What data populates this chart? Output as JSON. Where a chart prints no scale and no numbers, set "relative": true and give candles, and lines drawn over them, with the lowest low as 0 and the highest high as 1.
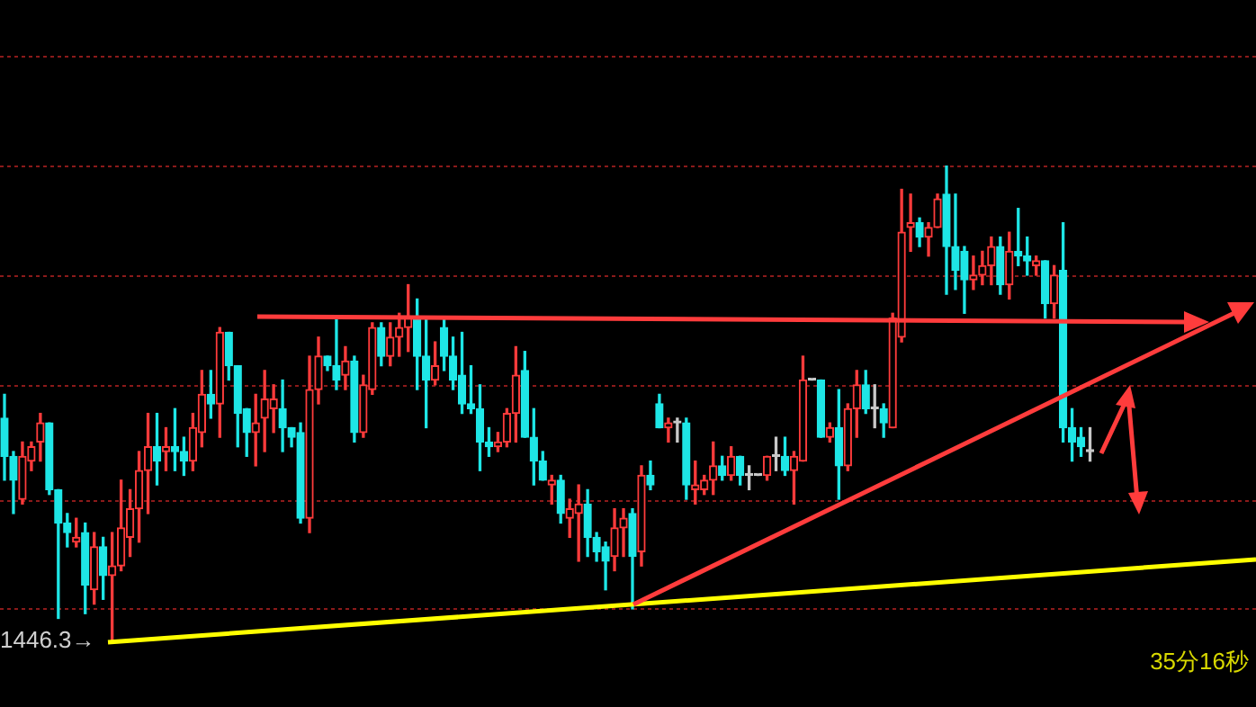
{
  "chart_data": {
    "type": "candlestick",
    "relative": true,
    "annotations": [
      "1446.3→",
      "35分16秒"
    ],
    "ref_lines": [
      {
        "axis": "y",
        "value": 1.23,
        "color": "#8b1a1a",
        "line_style": "dotted"
      },
      {
        "axis": "y",
        "value": 1.0,
        "color": "#8b1a1a",
        "line_style": "dotted"
      },
      {
        "axis": "y",
        "value": 0.77,
        "color": "#8b1a1a",
        "line_style": "dotted"
      },
      {
        "axis": "y",
        "value": 0.54,
        "color": "#8b1a1a",
        "line_style": "dotted"
      },
      {
        "axis": "y",
        "value": 0.3,
        "color": "#8b1a1a",
        "line_style": "dotted"
      },
      {
        "axis": "y",
        "value": 0.07,
        "color": "#8b1a1a",
        "line_style": "dotted"
      }
    ],
    "categories": [
      null,
      null,
      null,
      null,
      null,
      null,
      null,
      null,
      null,
      null,
      null,
      null,
      null,
      null,
      null,
      null,
      null,
      null,
      null,
      null,
      null,
      null,
      null,
      null,
      null,
      null,
      null,
      null,
      null,
      null,
      null,
      null,
      null,
      null,
      null,
      null,
      null,
      null,
      null,
      null,
      null,
      null,
      null,
      null,
      null,
      null,
      null,
      null,
      null,
      null,
      null,
      null,
      null,
      null,
      null,
      null,
      null,
      null,
      null,
      null,
      null,
      null,
      null,
      null,
      null,
      null,
      null,
      null,
      null,
      null,
      null,
      null,
      null,
      null,
      null,
      null,
      null,
      null,
      null,
      null,
      null,
      null,
      null,
      null,
      null,
      null,
      null,
      null,
      null,
      null,
      null,
      null,
      null,
      null,
      null,
      null,
      null,
      null,
      null,
      null,
      null,
      null,
      null,
      null,
      null,
      null,
      null,
      null,
      null,
      null,
      null,
      null,
      null,
      null,
      null,
      null,
      null,
      null,
      null,
      null,
      null,
      null,
      null,
      null,
      null,
      null,
      null,
      null,
      null,
      null,
      null,
      null,
      null,
      null,
      null,
      null,
      null,
      null,
      null,
      null
    ],
    "ohlc": [
      [
        0.47,
        0.52,
        0.34,
        0.39
      ],
      [
        0.39,
        0.4,
        0.27,
        0.34
      ],
      [
        0.3,
        0.42,
        0.29,
        0.39
      ],
      [
        0.38,
        0.42,
        0.36,
        0.41
      ],
      [
        0.42,
        0.48,
        0.38,
        0.46
      ],
      [
        0.46,
        0.46,
        0.31,
        0.32
      ],
      [
        0.32,
        0.32,
        0.05,
        0.25
      ],
      [
        0.25,
        0.27,
        0.2,
        0.23
      ],
      [
        0.21,
        0.26,
        0.2,
        0.22
      ],
      [
        0.23,
        0.25,
        0.06,
        0.12
      ],
      [
        0.11,
        0.23,
        0.08,
        0.2
      ],
      [
        0.2,
        0.22,
        0.09,
        0.14
      ],
      [
        0.14,
        0.23,
        0,
        0.16
      ],
      [
        0.16,
        0.34,
        0.15,
        0.24
      ],
      [
        0.22,
        0.32,
        0.18,
        0.28
      ],
      [
        0.28,
        0.4,
        0.21,
        0.36
      ],
      [
        0.36,
        0.48,
        0.27,
        0.41
      ],
      [
        0.41,
        0.48,
        0.33,
        0.38
      ],
      [
        0.4,
        0.45,
        0.36,
        0.41
      ],
      [
        0.41,
        0.49,
        0.36,
        0.4
      ],
      [
        0.4,
        0.43,
        0.35,
        0.38
      ],
      [
        0.38,
        0.48,
        0.36,
        0.45
      ],
      [
        0.44,
        0.57,
        0.41,
        0.52
      ],
      [
        0.52,
        0.57,
        0.47,
        0.5
      ],
      [
        0.5,
        0.66,
        0.43,
        0.65
      ],
      [
        0.65,
        0.65,
        0.55,
        0.58
      ],
      [
        0.58,
        0.58,
        0.41,
        0.48
      ],
      [
        0.49,
        0.49,
        0.39,
        0.44
      ],
      [
        0.44,
        0.52,
        0.37,
        0.46
      ],
      [
        0.47,
        0.57,
        0.4,
        0.51
      ],
      [
        0.49,
        0.54,
        0.44,
        0.51
      ],
      [
        0.49,
        0.55,
        0.4,
        0.45
      ],
      [
        0.45,
        0.45,
        0.41,
        0.43
      ],
      [
        0.44,
        0.46,
        0.25,
        0.26
      ],
      [
        0.26,
        0.6,
        0.23,
        0.53
      ],
      [
        0.53,
        0.64,
        0.5,
        0.6
      ],
      [
        0.6,
        0.6,
        0.57,
        0.58
      ],
      [
        0.58,
        0.68,
        0.53,
        0.55
      ],
      [
        0.56,
        0.62,
        0.53,
        0.59
      ],
      [
        0.59,
        0.6,
        0.42,
        0.44
      ],
      [
        0.44,
        0.56,
        0.43,
        0.54
      ],
      [
        0.53,
        0.67,
        0.52,
        0.66
      ],
      [
        0.66,
        0.67,
        0.58,
        0.6
      ],
      [
        0.6,
        0.67,
        0.58,
        0.64
      ],
      [
        0.64,
        0.69,
        0.6,
        0.66
      ],
      [
        0.66,
        0.75,
        0.61,
        0.68
      ],
      [
        0.68,
        0.72,
        0.53,
        0.6
      ],
      [
        0.6,
        0.68,
        0.45,
        0.55
      ],
      [
        0.55,
        0.63,
        0.54,
        0.58
      ],
      [
        0.66,
        0.68,
        0.57,
        0.6
      ],
      [
        0.6,
        0.64,
        0.53,
        0.55
      ],
      [
        0.56,
        0.65,
        0.48,
        0.5
      ],
      [
        0.5,
        0.58,
        0.48,
        0.49
      ],
      [
        0.49,
        0.54,
        0.36,
        0.42
      ],
      [
        0.42,
        0.45,
        0.39,
        0.41
      ],
      [
        0.41,
        0.44,
        0.4,
        0.42
      ],
      [
        0.42,
        0.49,
        0.41,
        0.48
      ],
      [
        0.48,
        0.62,
        0.42,
        0.56
      ],
      [
        0.57,
        0.61,
        0.43,
        0.43
      ],
      [
        0.43,
        0.49,
        0.33,
        0.38
      ],
      [
        0.38,
        0.4,
        0.34,
        0.34
      ],
      [
        0.33,
        0.35,
        0.29,
        0.34
      ],
      [
        0.34,
        0.35,
        0.25,
        0.27
      ],
      [
        0.26,
        0.3,
        0.22,
        0.28
      ],
      [
        0.27,
        0.33,
        0.17,
        0.29
      ],
      [
        0.29,
        0.32,
        0.18,
        0.22
      ],
      [
        0.22,
        0.23,
        0.17,
        0.19
      ],
      [
        0.2,
        0.21,
        0.11,
        0.17
      ],
      [
        0.18,
        0.28,
        0.15,
        0.24
      ],
      [
        0.24,
        0.28,
        0.18,
        0.26
      ],
      [
        0.27,
        0.28,
        0.07,
        0.18
      ],
      [
        0.19,
        0.37,
        0.16,
        0.35
      ],
      [
        0.35,
        0.38,
        0.32,
        0.33
      ],
      [
        0.5,
        0.52,
        0.45,
        0.45
      ],
      [
        0.45,
        0.47,
        0.42,
        0.46
      ],
      [
        0.46,
        0.47,
        0.42,
        0.46
      ],
      [
        0.46,
        0.47,
        0.3,
        0.33
      ],
      [
        0.32,
        0.38,
        0.29,
        0.33
      ],
      [
        0.32,
        0.35,
        0.31,
        0.34
      ],
      [
        0.34,
        0.42,
        0.31,
        0.37
      ],
      [
        0.37,
        0.39,
        0.34,
        0.35
      ],
      [
        0.35,
        0.41,
        0.34,
        0.39
      ],
      [
        0.39,
        0.39,
        0.33,
        0.35
      ],
      [
        0.35,
        0.37,
        0.32,
        0.35
      ],
      [
        0.35,
        0.35,
        0.35,
        0.35
      ],
      [
        0.35,
        0.39,
        0.34,
        0.39
      ],
      [
        0.39,
        0.43,
        0.36,
        0.39
      ],
      [
        0.39,
        0.43,
        0.35,
        0.36
      ],
      [
        0.36,
        0.4,
        0.29,
        0.39
      ],
      [
        0.38,
        0.6,
        0.38,
        0.55
      ],
      [
        0.55,
        0.55,
        0.55,
        0.55
      ],
      [
        0.55,
        0.55,
        0.43,
        0.43
      ],
      [
        0.43,
        0.46,
        0.42,
        0.45
      ],
      [
        0.45,
        0.53,
        0.3,
        0.37
      ],
      [
        0.37,
        0.5,
        0.36,
        0.49
      ],
      [
        0.49,
        0.57,
        0.43,
        0.54
      ],
      [
        0.54,
        0.57,
        0.48,
        0.49
      ],
      [
        0.49,
        0.54,
        0.45,
        0.49
      ],
      [
        0.49,
        0.5,
        0.43,
        0.46
      ],
      [
        0.45,
        0.69,
        0.45,
        0.68
      ],
      [
        0.64,
        0.95,
        0.63,
        0.86
      ],
      [
        0.87,
        0.94,
        0.82,
        0.88
      ],
      [
        0.88,
        0.89,
        0.83,
        0.85
      ],
      [
        0.85,
        0.88,
        0.81,
        0.87
      ],
      [
        0.87,
        0.94,
        0.87,
        0.93
      ],
      [
        0.94,
        1,
        0.73,
        0.83
      ],
      [
        0.83,
        0.94,
        0.74,
        0.78
      ],
      [
        0.82,
        0.83,
        0.69,
        0.76
      ],
      [
        0.76,
        0.81,
        0.74,
        0.77
      ],
      [
        0.77,
        0.82,
        0.75,
        0.79
      ],
      [
        0.79,
        0.85,
        0.75,
        0.83
      ],
      [
        0.83,
        0.85,
        0.73,
        0.75
      ],
      [
        0.75,
        0.86,
        0.72,
        0.82
      ],
      [
        0.82,
        0.91,
        0.79,
        0.81
      ],
      [
        0.81,
        0.85,
        0.77,
        0.8
      ],
      [
        0.79,
        0.81,
        0.77,
        0.8
      ],
      [
        0.8,
        0.8,
        0.68,
        0.71
      ],
      [
        0.71,
        0.79,
        0.68,
        0.77
      ],
      [
        0.78,
        0.88,
        0.42,
        0.45
      ],
      [
        0.45,
        0.49,
        0.38,
        0.42
      ],
      [
        0.43,
        0.45,
        0.39,
        0.41
      ],
      [
        0.4,
        0.45,
        0.38,
        0.4
      ],
      null,
      null,
      null,
      null,
      null,
      null,
      null,
      null,
      null,
      null,
      null,
      null,
      null,
      null,
      null,
      null,
      null,
      null
    ]
  }
}
